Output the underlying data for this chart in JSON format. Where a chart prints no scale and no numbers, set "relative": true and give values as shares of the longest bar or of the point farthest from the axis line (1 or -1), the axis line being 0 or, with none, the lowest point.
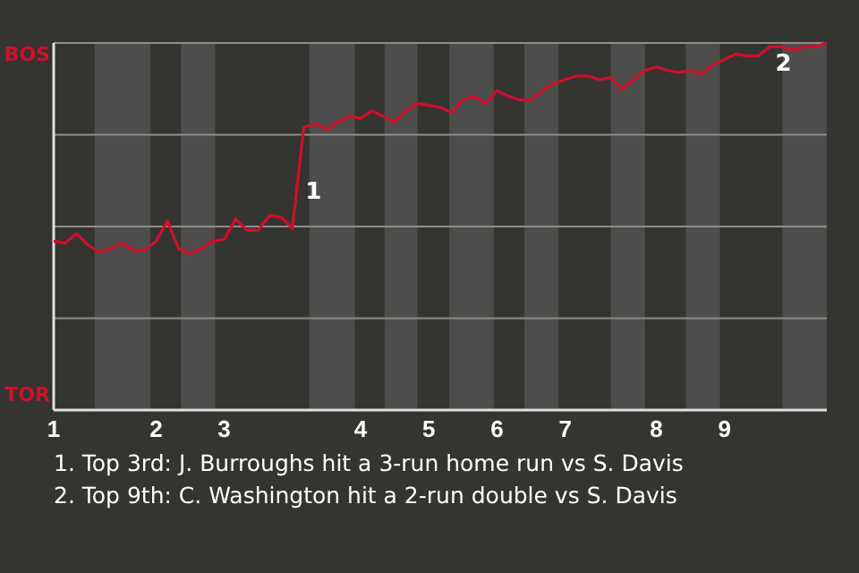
{
  "chart_data": {
    "type": "line",
    "relative": true,
    "categories": [
      "1",
      null,
      null,
      null,
      null,
      null,
      null,
      null,
      null,
      "2",
      null,
      null,
      null,
      null,
      null,
      "3",
      null,
      null,
      null,
      null,
      null,
      null,
      null,
      null,
      null,
      null,
      null,
      "4",
      null,
      null,
      null,
      null,
      null,
      "5",
      null,
      null,
      null,
      null,
      null,
      "6",
      null,
      null,
      null,
      null,
      null,
      "7",
      null,
      null,
      null,
      null,
      null,
      null,
      null,
      "8",
      null,
      null,
      null,
      null,
      null,
      "9",
      null,
      null,
      null,
      null,
      null,
      null,
      null,
      null,
      null
    ],
    "grid": "y",
    "series": [
      {
        "color": "#d0102a",
        "values": [
          0.46,
          0.455,
          0.48,
          0.45,
          0.43,
          0.44,
          0.455,
          0.435,
          0.435,
          0.46,
          0.515,
          0.44,
          0.425,
          0.44,
          0.46,
          0.465,
          0.52,
          0.49,
          0.49,
          0.53,
          0.525,
          0.495,
          0.77,
          0.78,
          0.765,
          0.785,
          0.8,
          0.795,
          0.815,
          0.8,
          0.785,
          0.815,
          0.835,
          0.83,
          0.825,
          0.81,
          0.845,
          0.855,
          0.835,
          0.87,
          0.855,
          0.845,
          0.845,
          0.87,
          0.89,
          0.9,
          0.91,
          0.91,
          0.9,
          0.905,
          0.875,
          0.9,
          0.925,
          0.935,
          0.925,
          0.92,
          0.925,
          0.915,
          0.94,
          0.955,
          0.97,
          0.965,
          0.965,
          0.99,
          0.99,
          0.98,
          0.99,
          0.99,
          1
        ]
      }
    ],
    "annotations": [
      "1",
      {
        "text": "2",
        "y": 0.99
      },
      "BOS",
      "TOR",
      "1. Top 3rd: J. Burroughs hit a 3-run home run vs S. Davis",
      "2. Top 9th: C. Washington hit a 2-run double vs S. Davis"
    ]
  }
}
